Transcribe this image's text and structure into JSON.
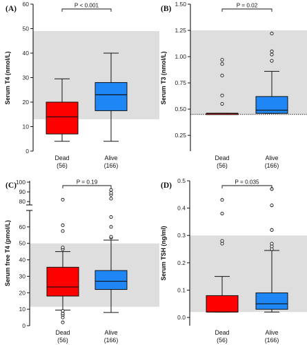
{
  "figure_colors": {
    "dead": "#ff0000",
    "alive": "#1e86f5",
    "reference_band": "#dedede"
  },
  "chart_data": [
    {
      "panel_label": "(A)",
      "type": "box",
      "ylabel": "Serum T4 (nmol/L)",
      "ylim": [
        0,
        60
      ],
      "yticks": [
        0,
        10,
        20,
        30,
        40,
        50,
        60
      ],
      "ytick_labels": [
        "0",
        "10",
        "20",
        "30",
        "40",
        "50",
        "60"
      ],
      "reference_band": [
        13,
        49
      ],
      "categories": [
        {
          "name": "Dead",
          "n": "(56)"
        },
        {
          "name": "Alive",
          "n": "(166)"
        }
      ],
      "series": [
        {
          "group": "Dead",
          "whisker_low": 4,
          "q1": 7,
          "median": 14,
          "q3": 20,
          "whisker_high": 29.5,
          "outliers": []
        },
        {
          "group": "Alive",
          "whisker_low": 4,
          "q1": 16.5,
          "median": 23,
          "q3": 28,
          "whisker_high": 40,
          "outliers": []
        }
      ],
      "p_value": "P < 0.001"
    },
    {
      "panel_label": "(B)",
      "type": "box",
      "ylabel": "Serum T3 (nmol/L)",
      "ylim": [
        0.1,
        1.5
      ],
      "yticks": [
        0.25,
        0.5,
        0.75,
        1.0,
        1.25,
        1.5
      ],
      "ytick_labels": [
        "0.25",
        "0.50",
        "0.75",
        "1.00",
        "1.25",
        "1.50"
      ],
      "reference_band": [
        0.45,
        1.25
      ],
      "dotted_reference_line": 0.45,
      "categories": [
        {
          "name": "Dead",
          "n": "(56)"
        },
        {
          "name": "Alive",
          "n": "(166)"
        }
      ],
      "series": [
        {
          "group": "Dead",
          "whisker_low": 0.46,
          "q1": 0.46,
          "median": 0.46,
          "q3": 0.46,
          "whisker_high": 0.46,
          "outliers": [
            0.55,
            0.63,
            0.82,
            0.93,
            0.97
          ]
        },
        {
          "group": "Alive",
          "whisker_low": 0.46,
          "q1": 0.46,
          "median": 0.49,
          "q3": 0.62,
          "whisker_high": 0.86,
          "outliers": [
            0.96,
            1.02,
            1.05,
            1.22
          ]
        }
      ],
      "p_value": "P = 0.02"
    },
    {
      "panel_label": "(C)",
      "type": "box",
      "ylabel": "Serum free T4 (pmol/L)",
      "ylim": [
        0,
        100
      ],
      "axis_break": [
        70,
        78
      ],
      "yticks": [
        0,
        10,
        20,
        30,
        40,
        50,
        60,
        80,
        90,
        100
      ],
      "ytick_labels": [
        "0",
        "10",
        "20",
        "30",
        "40",
        "50",
        "60",
        "80",
        "90",
        "100"
      ],
      "reference_band": [
        11.5,
        50
      ],
      "categories": [
        {
          "name": "Dead",
          "n": "(56)"
        },
        {
          "name": "Alive",
          "n": "(166)"
        }
      ],
      "series": [
        {
          "group": "Dead",
          "whisker_low": 9.5,
          "q1": 18,
          "median": 23.5,
          "q3": 35.5,
          "whisker_high": 45,
          "outliers": [
            2,
            5,
            6.5,
            7.5,
            9,
            46.5,
            47.5,
            57.5,
            61,
            82
          ]
        },
        {
          "group": "Alive",
          "whisker_low": 8,
          "q1": 22,
          "median": 27,
          "q3": 33.5,
          "whisker_high": 52,
          "outliers": [
            53.5,
            54,
            60,
            66,
            83,
            87,
            89,
            92
          ]
        }
      ],
      "p_value": "P = 0.19"
    },
    {
      "panel_label": "(D)",
      "type": "box",
      "ylabel": "Serum TSH (ng/ml)",
      "ylim": [
        -0.03,
        0.5
      ],
      "yticks": [
        0.0,
        0.1,
        0.2,
        0.3,
        0.4,
        0.5
      ],
      "ytick_labels": [
        "0.0",
        "0.1",
        "0.2",
        "0.3",
        "0.4",
        "0.5"
      ],
      "reference_band": [
        0.02,
        0.3
      ],
      "categories": [
        {
          "name": "Dead",
          "n": "(56)"
        },
        {
          "name": "Alive",
          "n": "(166)"
        }
      ],
      "series": [
        {
          "group": "Dead",
          "whisker_low": 0.02,
          "q1": 0.02,
          "median": 0.02,
          "q3": 0.08,
          "whisker_high": 0.15,
          "outliers": [
            0.27,
            0.28,
            0.38,
            0.43
          ]
        },
        {
          "group": "Alive",
          "whisker_low": 0.02,
          "q1": 0.03,
          "median": 0.05,
          "q3": 0.09,
          "whisker_high": 0.245,
          "outliers": [
            0.25,
            0.26,
            0.27,
            0.32,
            0.32,
            0.41,
            0.47,
            0.47
          ]
        }
      ],
      "p_value": "P = 0.035"
    }
  ]
}
